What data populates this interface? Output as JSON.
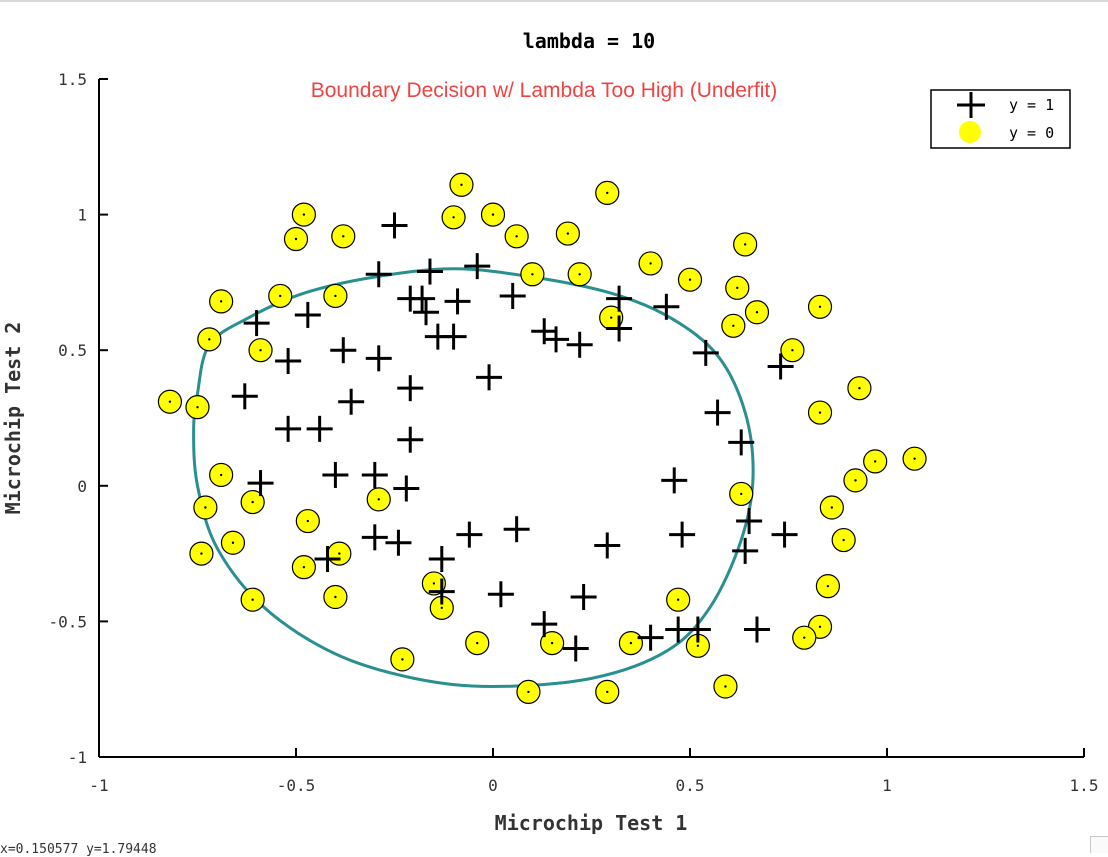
{
  "chart_data": {
    "type": "scatter",
    "title": "lambda = 10",
    "subtitle": "Boundary Decision w/ Lambda Too High (Underfit)",
    "xlabel": "Microchip Test 1",
    "ylabel": "Microchip Test 2",
    "xlim": [
      -1,
      1.5
    ],
    "ylim": [
      -1,
      1.5
    ],
    "x_ticks": [
      "-1",
      "-0.5",
      "0",
      "0.5",
      "1",
      "1.5"
    ],
    "y_ticks": [
      "-1",
      "-0.5",
      "0",
      "0.5",
      "1",
      "1.5"
    ],
    "grid": false,
    "legend_position": "top-right",
    "colors": {
      "positive": "#000000",
      "negative_fill": "#ffff00",
      "negative_edge": "#000000",
      "boundary": "#2a8f8f",
      "subtitle": "#ee4444"
    },
    "series": [
      {
        "name": "y = 1",
        "marker": "plus",
        "points": [
          [
            -0.25,
            0.96
          ],
          [
            -0.29,
            0.78
          ],
          [
            -0.16,
            0.79
          ],
          [
            -0.04,
            0.81
          ],
          [
            -0.21,
            0.69
          ],
          [
            -0.18,
            0.69
          ],
          [
            -0.09,
            0.68
          ],
          [
            -0.17,
            0.64
          ],
          [
            -0.47,
            0.63
          ],
          [
            -0.6,
            0.6
          ],
          [
            0.05,
            0.7
          ],
          [
            0.32,
            0.69
          ],
          [
            0.44,
            0.66
          ],
          [
            0.13,
            0.57
          ],
          [
            0.16,
            0.54
          ],
          [
            0.22,
            0.52
          ],
          [
            0.32,
            0.58
          ],
          [
            -0.14,
            0.55
          ],
          [
            -0.1,
            0.55
          ],
          [
            -0.38,
            0.5
          ],
          [
            -0.29,
            0.47
          ],
          [
            -0.52,
            0.46
          ],
          [
            0.54,
            0.49
          ],
          [
            0.73,
            0.44
          ],
          [
            -0.01,
            0.4
          ],
          [
            -0.21,
            0.36
          ],
          [
            -0.63,
            0.33
          ],
          [
            -0.36,
            0.31
          ],
          [
            0.57,
            0.27
          ],
          [
            -0.52,
            0.21
          ],
          [
            -0.44,
            0.21
          ],
          [
            -0.21,
            0.17
          ],
          [
            0.63,
            0.16
          ],
          [
            -0.4,
            0.04
          ],
          [
            -0.3,
            0.04
          ],
          [
            -0.59,
            0.01
          ],
          [
            -0.22,
            -0.01
          ],
          [
            0.46,
            0.02
          ],
          [
            0.65,
            -0.13
          ],
          [
            0.06,
            -0.16
          ],
          [
            -0.06,
            -0.18
          ],
          [
            0.48,
            -0.18
          ],
          [
            0.74,
            -0.18
          ],
          [
            -0.3,
            -0.19
          ],
          [
            -0.24,
            -0.21
          ],
          [
            0.29,
            -0.22
          ],
          [
            -0.42,
            -0.27
          ],
          [
            -0.13,
            -0.27
          ],
          [
            0.64,
            -0.24
          ],
          [
            -0.13,
            -0.39
          ],
          [
            0.02,
            -0.4
          ],
          [
            0.23,
            -0.41
          ],
          [
            0.13,
            -0.51
          ],
          [
            0.21,
            -0.6
          ],
          [
            0.4,
            -0.56
          ],
          [
            0.47,
            -0.53
          ],
          [
            0.52,
            -0.53
          ],
          [
            0.67,
            -0.53
          ]
        ]
      },
      {
        "name": "y = 0",
        "marker": "circle",
        "points": [
          [
            -0.08,
            1.11
          ],
          [
            0.29,
            1.08
          ],
          [
            -0.48,
            1.0
          ],
          [
            -0.1,
            0.99
          ],
          [
            0.0,
            1.0
          ],
          [
            -0.5,
            0.91
          ],
          [
            -0.38,
            0.92
          ],
          [
            0.06,
            0.92
          ],
          [
            0.19,
            0.93
          ],
          [
            0.64,
            0.89
          ],
          [
            0.4,
            0.82
          ],
          [
            0.22,
            0.78
          ],
          [
            0.1,
            0.78
          ],
          [
            0.5,
            0.76
          ],
          [
            0.62,
            0.73
          ],
          [
            -0.69,
            0.68
          ],
          [
            -0.54,
            0.7
          ],
          [
            -0.4,
            0.7
          ],
          [
            0.83,
            0.66
          ],
          [
            0.67,
            0.64
          ],
          [
            0.3,
            0.62
          ],
          [
            0.61,
            0.59
          ],
          [
            -0.72,
            0.54
          ],
          [
            -0.59,
            0.5
          ],
          [
            0.76,
            0.5
          ],
          [
            -0.82,
            0.31
          ],
          [
            -0.75,
            0.29
          ],
          [
            0.93,
            0.36
          ],
          [
            0.83,
            0.27
          ],
          [
            0.97,
            0.09
          ],
          [
            1.07,
            0.1
          ],
          [
            -0.69,
            0.04
          ],
          [
            0.92,
            0.02
          ],
          [
            0.63,
            -0.03
          ],
          [
            -0.61,
            -0.06
          ],
          [
            -0.29,
            -0.05
          ],
          [
            -0.73,
            -0.08
          ],
          [
            0.86,
            -0.08
          ],
          [
            -0.47,
            -0.13
          ],
          [
            -0.66,
            -0.21
          ],
          [
            0.89,
            -0.2
          ],
          [
            -0.74,
            -0.25
          ],
          [
            -0.39,
            -0.25
          ],
          [
            -0.48,
            -0.3
          ],
          [
            -0.15,
            -0.36
          ],
          [
            0.85,
            -0.37
          ],
          [
            -0.61,
            -0.42
          ],
          [
            -0.4,
            -0.41
          ],
          [
            -0.13,
            -0.45
          ],
          [
            0.47,
            -0.42
          ],
          [
            0.83,
            -0.52
          ],
          [
            0.79,
            -0.56
          ],
          [
            -0.04,
            -0.58
          ],
          [
            0.15,
            -0.58
          ],
          [
            0.35,
            -0.58
          ],
          [
            0.52,
            -0.59
          ],
          [
            -0.23,
            -0.64
          ],
          [
            0.09,
            -0.76
          ],
          [
            0.29,
            -0.76
          ],
          [
            0.59,
            -0.74
          ]
        ]
      }
    ],
    "decision_boundary": [
      [
        -0.75,
        0.34
      ],
      [
        -0.72,
        0.52
      ],
      [
        -0.62,
        0.62
      ],
      [
        -0.48,
        0.71
      ],
      [
        -0.3,
        0.77
      ],
      [
        -0.1,
        0.8
      ],
      [
        0.1,
        0.77
      ],
      [
        0.3,
        0.71
      ],
      [
        0.45,
        0.62
      ],
      [
        0.57,
        0.48
      ],
      [
        0.64,
        0.27
      ],
      [
        0.66,
        0.03
      ],
      [
        0.63,
        -0.2
      ],
      [
        0.55,
        -0.45
      ],
      [
        0.44,
        -0.61
      ],
      [
        0.25,
        -0.71
      ],
      [
        0.0,
        -0.74
      ],
      [
        -0.2,
        -0.71
      ],
      [
        -0.4,
        -0.62
      ],
      [
        -0.58,
        -0.45
      ],
      [
        -0.7,
        -0.23
      ],
      [
        -0.75,
        0.0
      ],
      [
        -0.76,
        0.2
      ]
    ]
  },
  "status_text": "x=0.150577  y=1.79448"
}
